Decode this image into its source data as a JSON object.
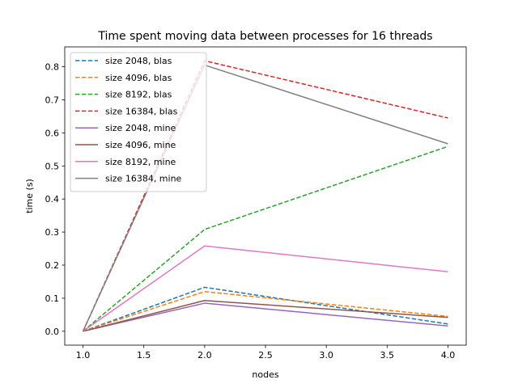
{
  "chart_data": {
    "type": "line",
    "title": "Time spent moving data between processes for 16 threads",
    "xlabel": "nodes",
    "ylabel": "time (s)",
    "xlim": [
      0.85,
      4.15
    ],
    "ylim": [
      -0.042,
      0.86
    ],
    "xticks": [
      "1.0",
      "1.5",
      "2.0",
      "2.5",
      "3.0",
      "3.5",
      "4.0"
    ],
    "yticks": [
      "0.0",
      "0.1",
      "0.2",
      "0.3",
      "0.4",
      "0.5",
      "0.6",
      "0.7",
      "0.8"
    ],
    "grid": false,
    "legend_position": "upper-left",
    "x": [
      1,
      2,
      4
    ],
    "series": [
      {
        "name": "size 2048, blas",
        "values": [
          0.0,
          0.133,
          0.022
        ],
        "color": "#1f77b4",
        "style": "dashed"
      },
      {
        "name": "size 4096, blas",
        "values": [
          0.0,
          0.12,
          0.045
        ],
        "color": "#ff7f0e",
        "style": "dashed"
      },
      {
        "name": "size 8192, blas",
        "values": [
          0.0,
          0.308,
          0.559
        ],
        "color": "#2ca02c",
        "style": "dashed"
      },
      {
        "name": "size 16384, blas",
        "values": [
          0.0,
          0.818,
          0.645
        ],
        "color": "#d62728",
        "style": "dashed"
      },
      {
        "name": "size 2048, mine",
        "values": [
          0.0,
          0.085,
          0.016
        ],
        "color": "#9467bd",
        "style": "solid"
      },
      {
        "name": "size 4096, mine",
        "values": [
          0.0,
          0.093,
          0.042
        ],
        "color": "#8c564b",
        "style": "solid"
      },
      {
        "name": "size 8192, mine",
        "values": [
          0.0,
          0.258,
          0.18
        ],
        "color": "#e377c2",
        "style": "solid"
      },
      {
        "name": "size 16384, mine",
        "values": [
          0.0,
          0.805,
          0.567
        ],
        "color": "#7f7f7f",
        "style": "solid"
      }
    ]
  }
}
